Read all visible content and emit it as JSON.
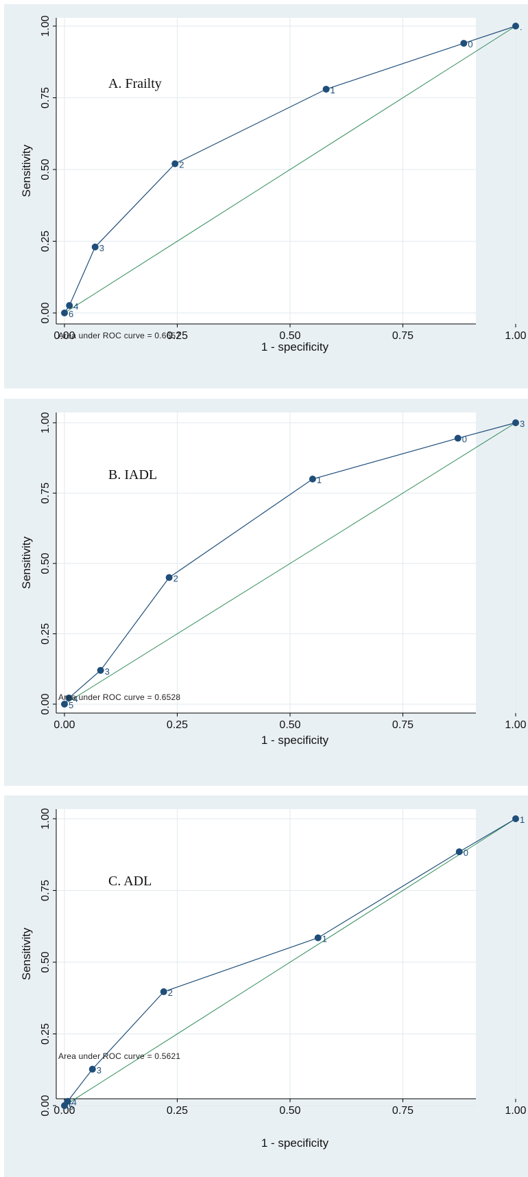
{
  "chart_data": [
    {
      "type": "line",
      "annotation": "A. Frailty",
      "xlabel": "1 - specificity",
      "ylabel": "Sensitivity",
      "xlim": [
        0,
        1
      ],
      "ylim": [
        0,
        1
      ],
      "xticks": [
        "0.00",
        "0.25",
        "0.50",
        "0.75",
        "1.00"
      ],
      "yticks": [
        "0.00",
        "0.25",
        "0.50",
        "0.75",
        "1.00"
      ],
      "grid": true,
      "footer": "Area under ROC curve = 0.6657",
      "reference_line": [
        [
          0,
          0
        ],
        [
          1,
          1
        ]
      ],
      "series": [
        {
          "x": [
            1.0,
            0.885,
            0.58,
            0.245,
            0.068,
            0.011,
            0.0
          ],
          "y": [
            1.0,
            0.94,
            0.78,
            0.52,
            0.23,
            0.026,
            0.0
          ],
          "labels": [
            ".",
            "0",
            "1",
            "2",
            "3",
            "4",
            "6"
          ]
        }
      ]
    },
    {
      "type": "line",
      "annotation": "B. IADL",
      "xlabel": "1 - specificity",
      "ylabel": "Sensitivity",
      "xlim": [
        0,
        1
      ],
      "ylim": [
        0,
        1
      ],
      "xticks": [
        "0.00",
        "0.25",
        "0.50",
        "0.75",
        "1.00"
      ],
      "yticks": [
        "0.00",
        "0.25",
        "0.50",
        "0.75",
        "1.00"
      ],
      "grid": true,
      "footer": "Area under ROC curve = 0.6528",
      "reference_line": [
        [
          0,
          0
        ],
        [
          1,
          1
        ]
      ],
      "series": [
        {
          "x": [
            1.0,
            0.872,
            0.55,
            0.232,
            0.08,
            0.01,
            0.0
          ],
          "y": [
            1.0,
            0.945,
            0.8,
            0.45,
            0.12,
            0.022,
            0.0
          ],
          "labels": [
            "3",
            "0",
            "1",
            "2",
            "3",
            "4",
            "5"
          ]
        }
      ]
    },
    {
      "type": "line",
      "annotation": "C. ADL",
      "xlabel": "1 - specificity",
      "ylabel": "Sensitivity",
      "xlim": [
        0,
        1
      ],
      "ylim": [
        0,
        1
      ],
      "xticks": [
        "0.00",
        "0.25",
        "0.50",
        "0.75",
        "1.00"
      ],
      "yticks": [
        "0.00",
        "0.25",
        "0.50",
        "0.75",
        "1.00"
      ],
      "grid": true,
      "footer": "Area under ROC curve = 0.5621",
      "reference_line": [
        [
          0,
          0
        ],
        [
          1,
          1
        ]
      ],
      "series": [
        {
          "x": [
            1.0,
            0.875,
            0.562,
            0.22,
            0.062,
            0.007,
            0.0
          ],
          "y": [
            1.0,
            0.885,
            0.585,
            0.397,
            0.127,
            0.015,
            0.0
          ],
          "labels": [
            "1",
            "0",
            "1",
            "2",
            "3",
            "4",
            "5"
          ]
        }
      ]
    }
  ],
  "colors": {
    "curve": "#1f4e79",
    "reference": "#2e8b57",
    "panel_bg": "#e9f0f3",
    "plot_bg": "#ffffff",
    "grid": "#e2eaee"
  }
}
